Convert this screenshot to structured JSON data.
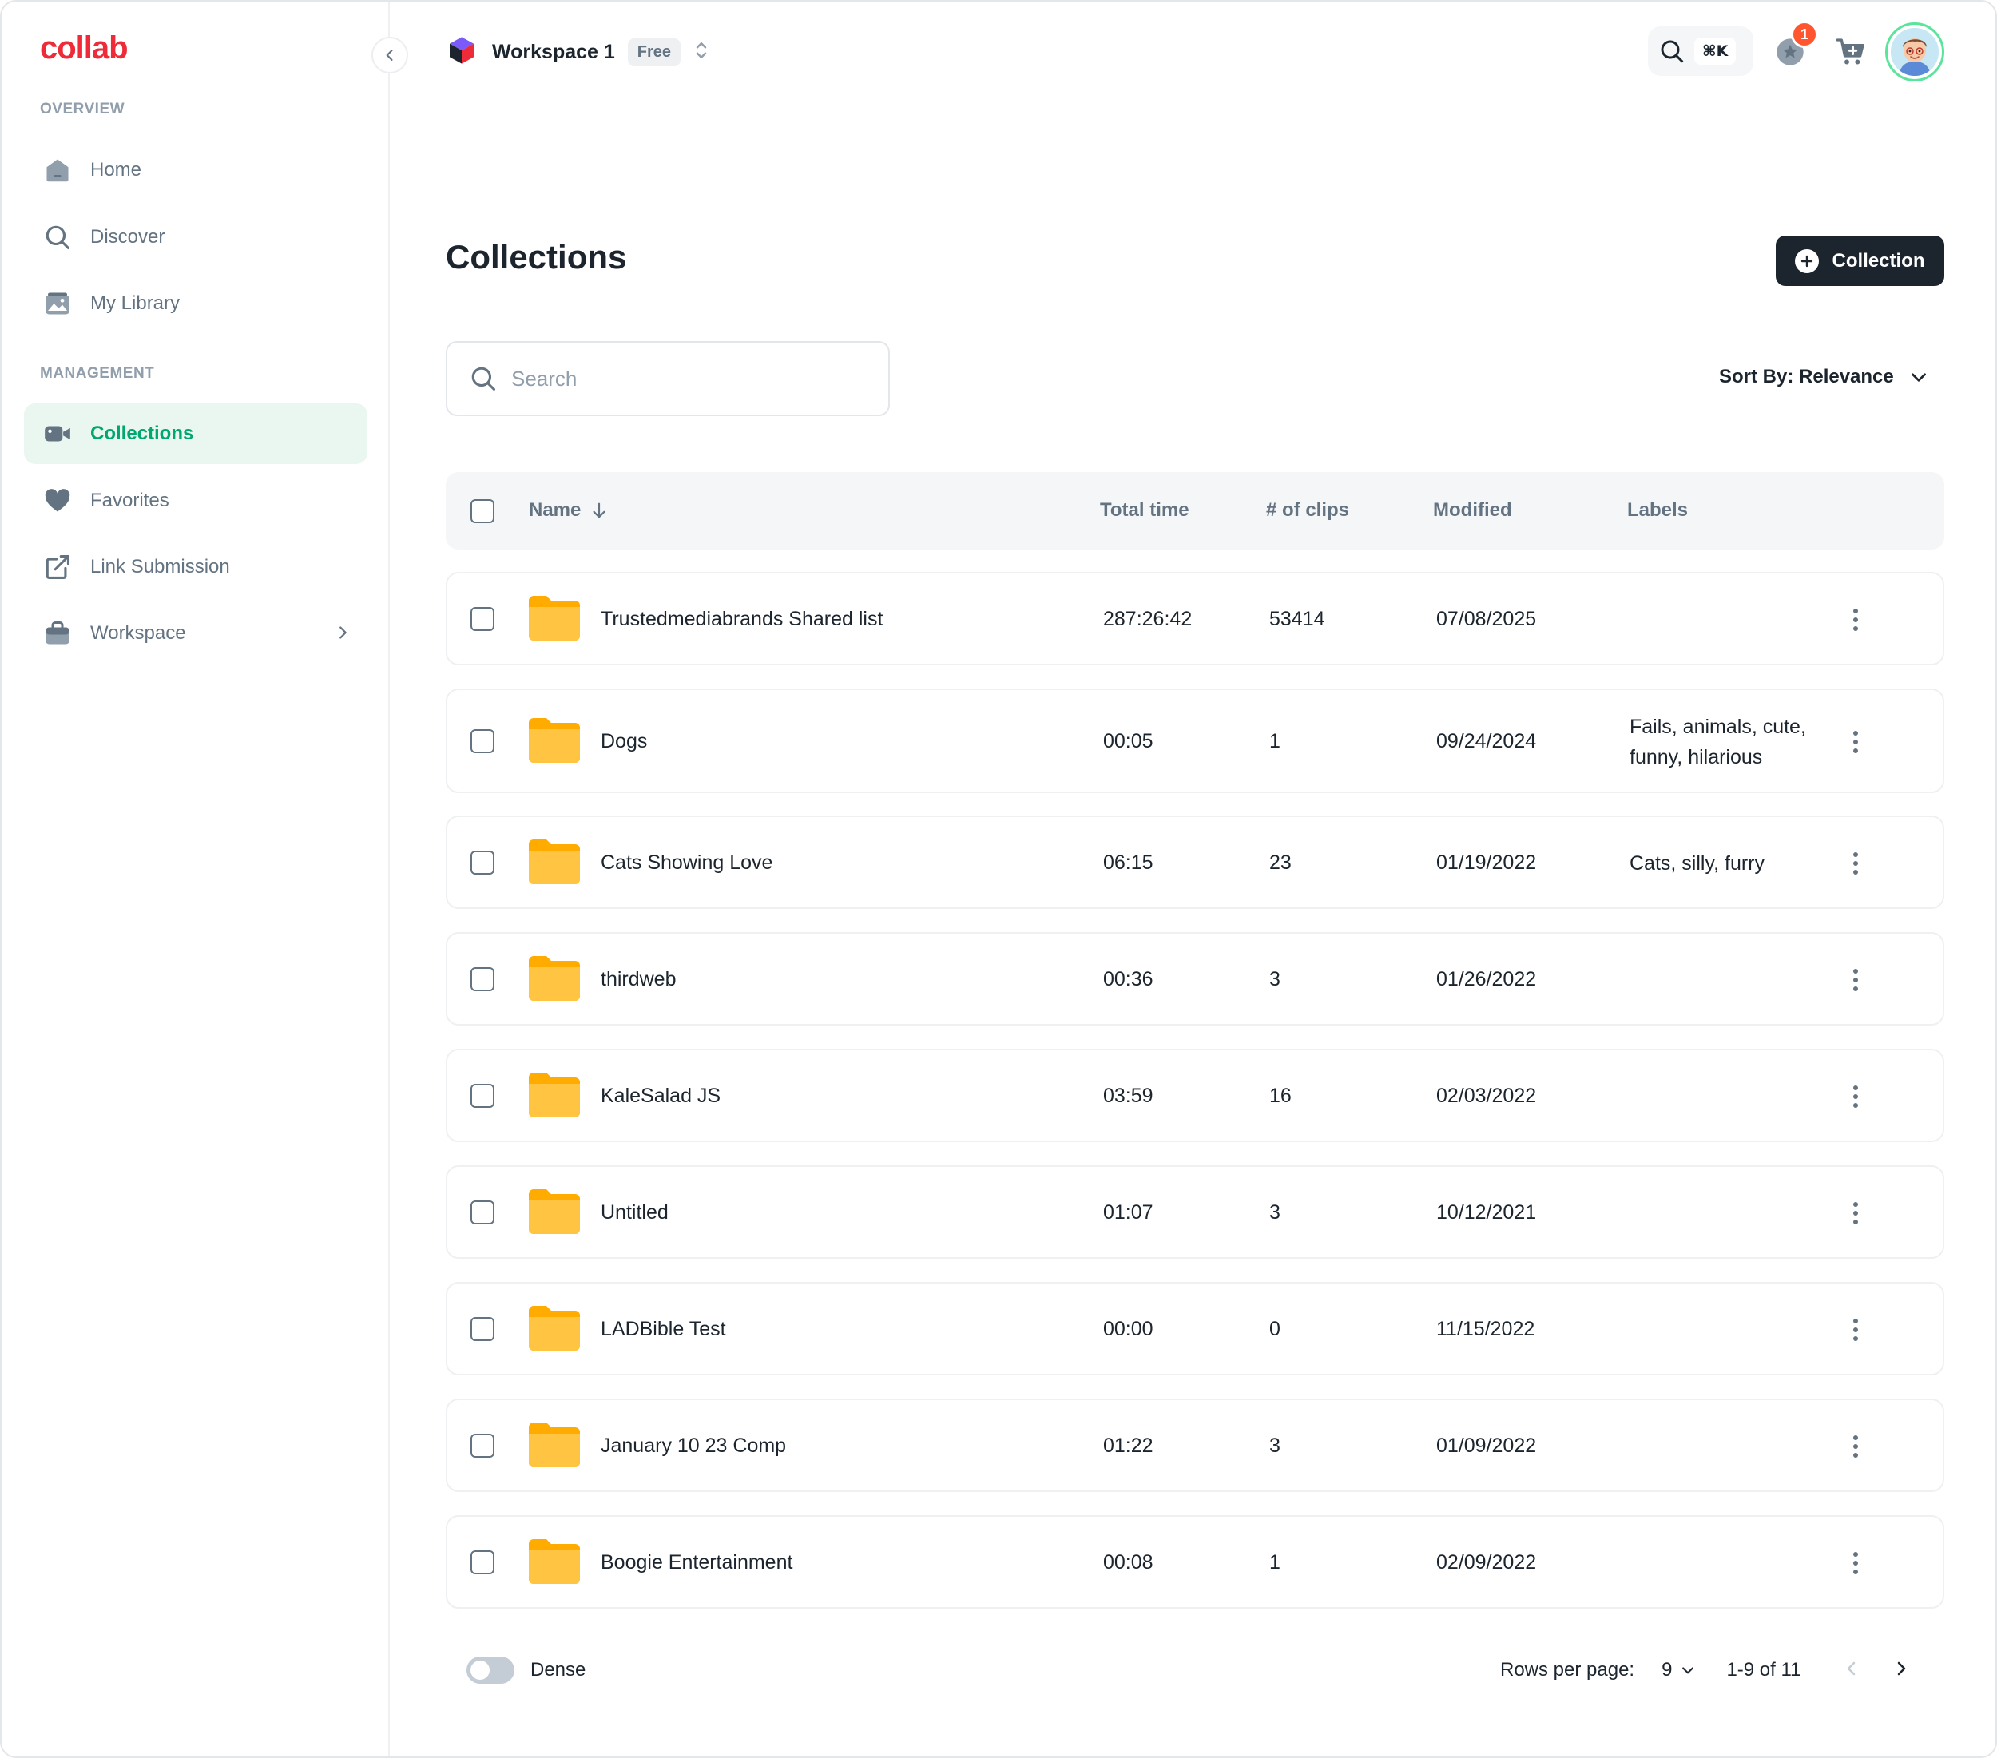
{
  "app": {
    "logo": "collab"
  },
  "sidebar": {
    "section_overview": "OVERVIEW",
    "section_management": "MANAGEMENT",
    "items": [
      {
        "label": "Home",
        "icon": "home-icon"
      },
      {
        "label": "Discover",
        "icon": "search-icon"
      },
      {
        "label": "My Library",
        "icon": "library-icon"
      },
      {
        "label": "Collections",
        "icon": "video-camera-icon",
        "active": true
      },
      {
        "label": "Favorites",
        "icon": "heart-icon"
      },
      {
        "label": "Link Submission",
        "icon": "external-link-icon"
      },
      {
        "label": "Workspace",
        "icon": "briefcase-icon"
      }
    ]
  },
  "header": {
    "workspace_name": "Workspace 1",
    "plan_badge": "Free",
    "search_shortcut": "⌘K",
    "notification_count": "1"
  },
  "main": {
    "title": "Collections",
    "add_button": "Collection",
    "search_placeholder": "Search",
    "sort_label": "Sort By: Relevance",
    "columns": {
      "name": "Name",
      "total_time": "Total time",
      "clips": "# of clips",
      "modified": "Modified",
      "labels": "Labels"
    },
    "rows": [
      {
        "name": "Trustedmediabrands Shared list",
        "time": "287:26:42",
        "clips": "53414",
        "modified": "07/08/2025",
        "labels": ""
      },
      {
        "name": "Dogs",
        "time": "00:05",
        "clips": "1",
        "modified": "09/24/2024",
        "labels": "Fails, animals, cute, funny, hilarious"
      },
      {
        "name": "Cats Showing Love",
        "time": "06:15",
        "clips": "23",
        "modified": "01/19/2022",
        "labels": "Cats, silly, furry"
      },
      {
        "name": "thirdweb",
        "time": "00:36",
        "clips": "3",
        "modified": "01/26/2022",
        "labels": ""
      },
      {
        "name": "KaleSalad JS",
        "time": "03:59",
        "clips": "16",
        "modified": "02/03/2022",
        "labels": ""
      },
      {
        "name": "Untitled",
        "time": "01:07",
        "clips": "3",
        "modified": "10/12/2021",
        "labels": ""
      },
      {
        "name": "LADBible Test",
        "time": "00:00",
        "clips": "0",
        "modified": "11/15/2022",
        "labels": ""
      },
      {
        "name": "January 10 23 Comp",
        "time": "01:22",
        "clips": "3",
        "modified": "01/09/2022",
        "labels": ""
      },
      {
        "name": "Boogie Entertainment",
        "time": "00:08",
        "clips": "1",
        "modified": "02/09/2022",
        "labels": ""
      }
    ]
  },
  "footer": {
    "dense_label": "Dense",
    "rows_per_page_label": "Rows per page:",
    "rows_per_page_value": "9",
    "range": "1-9 of 11"
  },
  "colors": {
    "accent": "#00a76f",
    "brand": "#ee2b38",
    "folder": "#ffc542",
    "dark_button": "#1c252e",
    "badge": "#ff5630"
  }
}
